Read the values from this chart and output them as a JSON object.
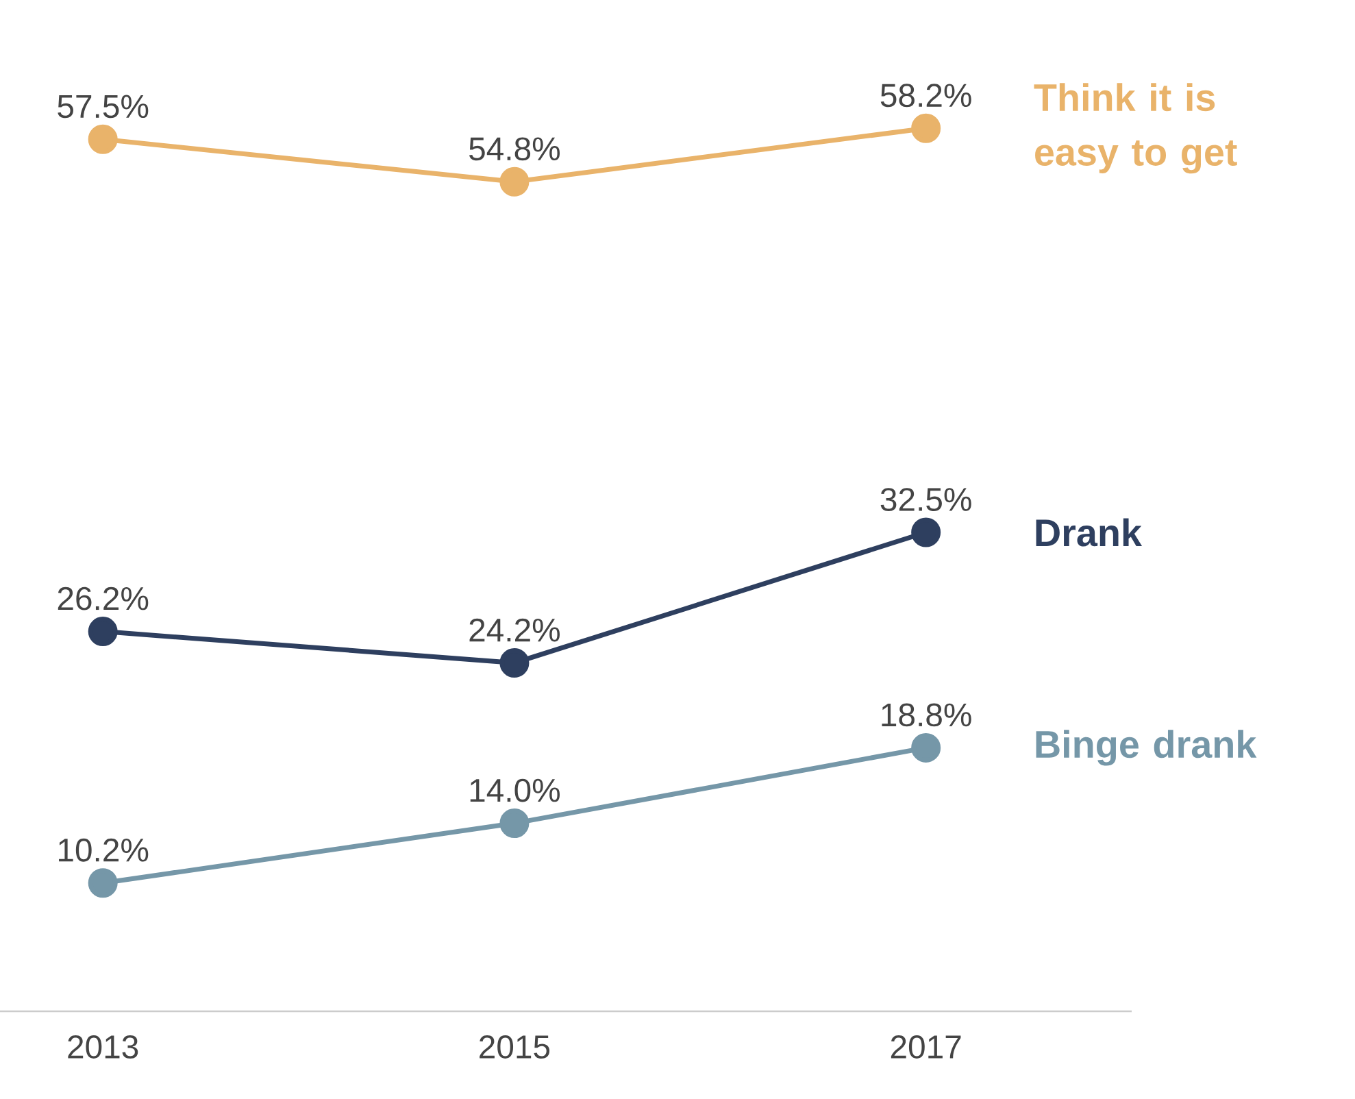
{
  "chart_data": {
    "type": "line",
    "categories": [
      "2013",
      "2015",
      "2017"
    ],
    "series": [
      {
        "name": "Think it is easy to get",
        "color": "#e9b36a",
        "values": [
          57.5,
          54.8,
          58.2
        ],
        "value_labels": [
          "57.5%",
          "54.8%",
          "58.2%"
        ]
      },
      {
        "name": "Drank",
        "color": "#2e3f5f",
        "values": [
          26.2,
          24.2,
          32.5
        ],
        "value_labels": [
          "26.2%",
          "24.2%",
          "32.5%"
        ]
      },
      {
        "name": "Binge drank",
        "color": "#7597a8",
        "values": [
          10.2,
          14.0,
          18.8
        ],
        "value_labels": [
          "10.2%",
          "14.0%",
          "18.8%"
        ]
      }
    ],
    "tick_labels": "x",
    "legend": false,
    "grid": false,
    "marker": "circle"
  }
}
